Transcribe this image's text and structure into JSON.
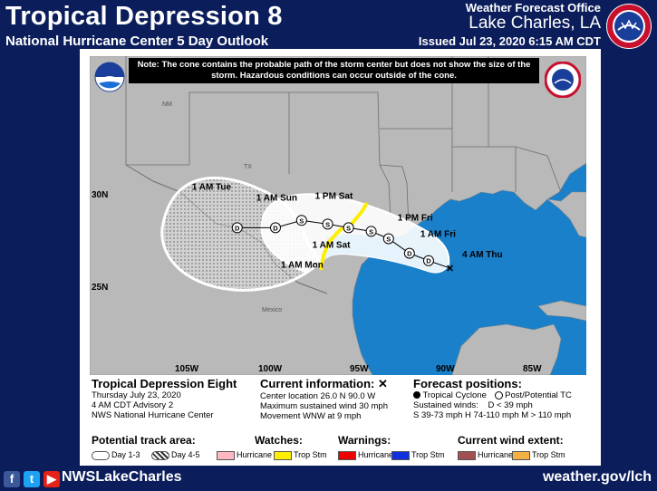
{
  "header": {
    "title": "Tropical Depression 8",
    "subtitle": "National Hurricane Center 5 Day Outlook",
    "office": "Weather Forecast Office",
    "city": "Lake Charles, LA",
    "issued": "Issued Jul 23, 2020 6:15 AM CDT"
  },
  "note": "Note: The cone contains the probable path of the storm center but does not show the size of the storm. Hazardous conditions can occur outside of the cone.",
  "map": {
    "lat_labels": [
      "30N",
      "25N"
    ],
    "lon_labels": [
      "105W",
      "100W",
      "95W",
      "90W",
      "85W"
    ],
    "state_labels": [
      "NM",
      "TX"
    ],
    "country_label": "Mexico",
    "colors": {
      "water": "#1a80c9",
      "land": "#b9b9b9",
      "cone_outline": "#ffffff",
      "tropical_storm_warning": "#ffee00"
    },
    "forecast_points": [
      {
        "label": "4 AM Thu",
        "symbol": "X",
        "lat": 26.0,
        "lon": -90.0
      },
      {
        "label": "",
        "symbol": "D",
        "lat": 26.4,
        "lon": -91.2
      },
      {
        "label": "1 AM Fri",
        "symbol": "D",
        "lat": 26.8,
        "lon": -92.3
      },
      {
        "label": "1 PM Fri",
        "symbol": "S",
        "lat": 27.6,
        "lon": -93.5
      },
      {
        "label": "",
        "symbol": "S",
        "lat": 28.0,
        "lon": -94.5
      },
      {
        "label": "1 AM Sat",
        "symbol": "S",
        "lat": 28.2,
        "lon": -95.8
      },
      {
        "label": "1 PM Sat",
        "symbol": "S",
        "lat": 28.4,
        "lon": -97.0
      },
      {
        "label": "1 AM Sun",
        "symbol": "S",
        "lat": 28.6,
        "lon": -98.5
      },
      {
        "label": "1 AM Mon",
        "symbol": "D",
        "lat": 28.2,
        "lon": -100.0
      },
      {
        "label": "1 AM Tue",
        "symbol": "D",
        "lat": 28.2,
        "lon": -102.2
      }
    ]
  },
  "info": {
    "storm_name": "Tropical Depression Eight",
    "date": "Thursday July 23, 2020",
    "advisory": "4 AM CDT Advisory 2",
    "source": "NWS National Hurricane Center",
    "current_title": "Current information:",
    "current_symbol": "✕",
    "location": "Center location 26.0 N 90.0 W",
    "max_wind": "Maximum sustained wind 30 mph",
    "movement": "Movement WNW at 9 mph",
    "forecast_title": "Forecast positions:",
    "tropical_cyclone": "Tropical Cyclone",
    "post_tc": "Post/Potential TC",
    "sustained_winds": "Sustained winds:",
    "d_speed": "D < 39 mph",
    "s_speed": "S 39-73 mph",
    "h_speed": "H 74-110 mph",
    "m_speed": "M > 110 mph"
  },
  "legend": {
    "track_title": "Potential track area:",
    "day13": "Day 1-3",
    "day45": "Day 4-5",
    "watches_title": "Watches:",
    "warnings_title": "Warnings:",
    "extent_title": "Current wind extent:",
    "hurricane": "Hurricane",
    "trop_stm": "Trop Stm",
    "hurricane_watch_color": "#ffb6c1",
    "ts_watch_color": "#ffee00",
    "hurricane_warning_color": "#ee0000",
    "ts_warning_color": "#1030e0",
    "hurricane_extent_color": "#a05050",
    "ts_extent_color": "#f4b040"
  },
  "footer": {
    "handle": "NWSLakeCharles",
    "website": "weather.gov/lch"
  }
}
